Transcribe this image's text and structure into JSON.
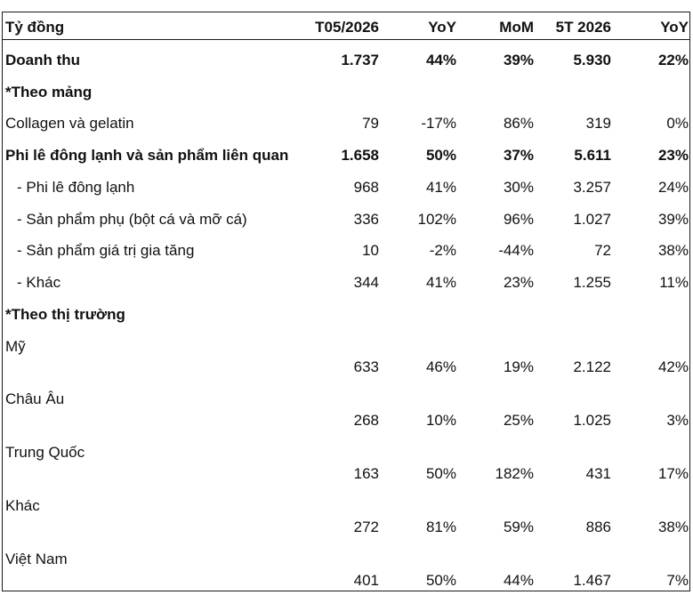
{
  "header": {
    "unit": "Tỷ đồng",
    "col1": "T05/2026",
    "col2": "YoY",
    "col3": "MoM",
    "col4": "5T 2026",
    "col5": "YoY"
  },
  "rows": [
    {
      "label": "Doanh thu",
      "v1": "1.737",
      "v2": "44%",
      "v3": "39%",
      "v4": "5.930",
      "v5": "22%"
    },
    {
      "label": "*Theo mảng"
    },
    {
      "label": "Collagen và gelatin",
      "v1": "79",
      "v2": "-17%",
      "v3": "86%",
      "v4": "319",
      "v5": "0%"
    },
    {
      "label": "Phi lê đông lạnh và sản phẩm liên quan",
      "v1": "1.658",
      "v2": "50%",
      "v3": "37%",
      "v4": "5.611",
      "v5": "23%"
    },
    {
      "label": "- Phi lê đông lạnh",
      "v1": "968",
      "v2": "41%",
      "v3": "30%",
      "v4": "3.257",
      "v5": "24%"
    },
    {
      "label": "- Sản phẩm phụ (bột cá và mỡ cá)",
      "v1": "336",
      "v2": "102%",
      "v3": "96%",
      "v4": "1.027",
      "v5": "39%"
    },
    {
      "label": "- Sản phẩm giá trị gia tăng",
      "v1": "10",
      "v2": "-2%",
      "v3": "-44%",
      "v4": "72",
      "v5": "38%"
    },
    {
      "label": "- Khác",
      "v1": "344",
      "v2": "41%",
      "v3": "23%",
      "v4": "1.255",
      "v5": "11%"
    },
    {
      "label": "*Theo thị trường"
    },
    {
      "label": "Mỹ",
      "v1": "633",
      "v2": "46%",
      "v3": "19%",
      "v4": "2.122",
      "v5": "42%"
    },
    {
      "label": "Châu Âu",
      "v1": "268",
      "v2": "10%",
      "v3": "25%",
      "v4": "1.025",
      "v5": "3%"
    },
    {
      "label": "Trung Quốc",
      "v1": "163",
      "v2": "50%",
      "v3": "182%",
      "v4": "431",
      "v5": "17%"
    },
    {
      "label": "Khác",
      "v1": "272",
      "v2": "81%",
      "v3": "59%",
      "v4": "886",
      "v5": "38%"
    },
    {
      "label": "Việt Nam",
      "v1": "401",
      "v2": "50%",
      "v3": "44%",
      "v4": "1.467",
      "v5": "7%"
    }
  ]
}
